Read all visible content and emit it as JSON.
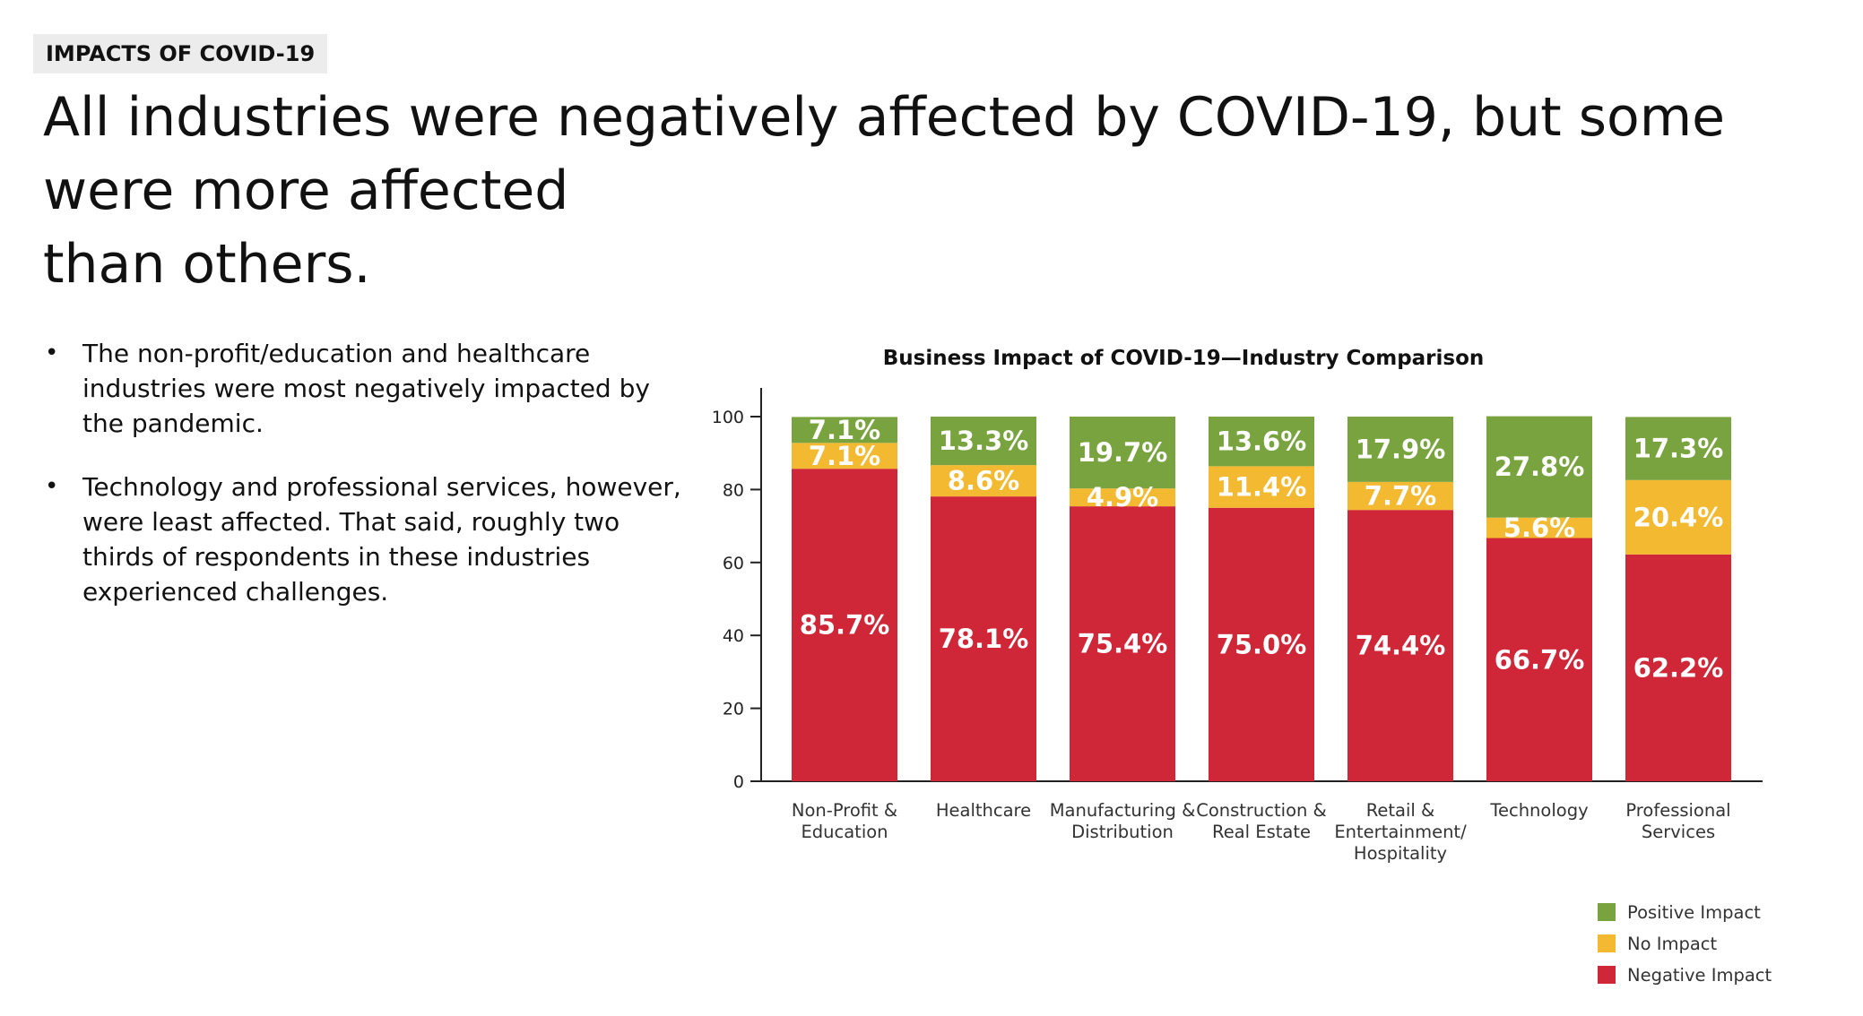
{
  "header": {
    "tag": "IMPACTS OF COVID-19",
    "headline_line1": "All industries were negatively affected by COVID-19, but some were more affected",
    "headline_line2": "than others."
  },
  "bullets": [
    {
      "lines": [
        "The non-profit/education and healthcare",
        "industries were most negatively impacted by",
        "the pandemic."
      ]
    },
    {
      "lines": [
        "Technology and professional services, however,",
        "were least affected. That said, roughly two",
        "thirds of respondents in these industries",
        "experienced challenges."
      ]
    }
  ],
  "chart_data": {
    "type": "bar",
    "stacked": true,
    "title": "Business Impact of COVID-19—Industry Comparison",
    "xlabel": "",
    "ylabel": "",
    "ylim": [
      0,
      100
    ],
    "yticks": [
      0,
      20,
      40,
      60,
      80,
      100
    ],
    "categories": [
      [
        "Non-Profit &",
        "Education"
      ],
      [
        "Healthcare"
      ],
      [
        "Manufacturing &",
        "Distribution"
      ],
      [
        "Construction &",
        "Real Estate"
      ],
      [
        "Retail &",
        "Entertainment/",
        "Hospitality"
      ],
      [
        "Technology"
      ],
      [
        "Professional",
        "Services"
      ]
    ],
    "series": [
      {
        "name": "Negative Impact",
        "color": "#cf2638",
        "values": [
          85.7,
          78.1,
          75.4,
          75.0,
          74.4,
          66.7,
          62.2
        ],
        "labels": [
          "85.7%",
          "78.1%",
          "75.4%",
          "75.0%",
          "74.4%",
          "66.7%",
          "62.2%"
        ]
      },
      {
        "name": "No Impact",
        "color": "#f3b930",
        "values": [
          7.1,
          8.6,
          4.9,
          11.4,
          7.7,
          5.6,
          20.4
        ],
        "labels": [
          "7.1%",
          "8.6%",
          "4.9%",
          "11.4%",
          "7.7%",
          "5.6%",
          "20.4%"
        ]
      },
      {
        "name": "Positive Impact",
        "color": "#78a33f",
        "values": [
          7.1,
          13.3,
          19.7,
          13.6,
          17.9,
          27.8,
          17.3
        ],
        "labels": [
          "7.1%",
          "13.3%",
          "19.7%",
          "13.6%",
          "17.9%",
          "27.8%",
          "17.3%"
        ]
      }
    ],
    "legend": {
      "placement": "bottom-right",
      "order": [
        "Positive Impact",
        "No Impact",
        "Negative Impact"
      ]
    },
    "grid": false
  }
}
